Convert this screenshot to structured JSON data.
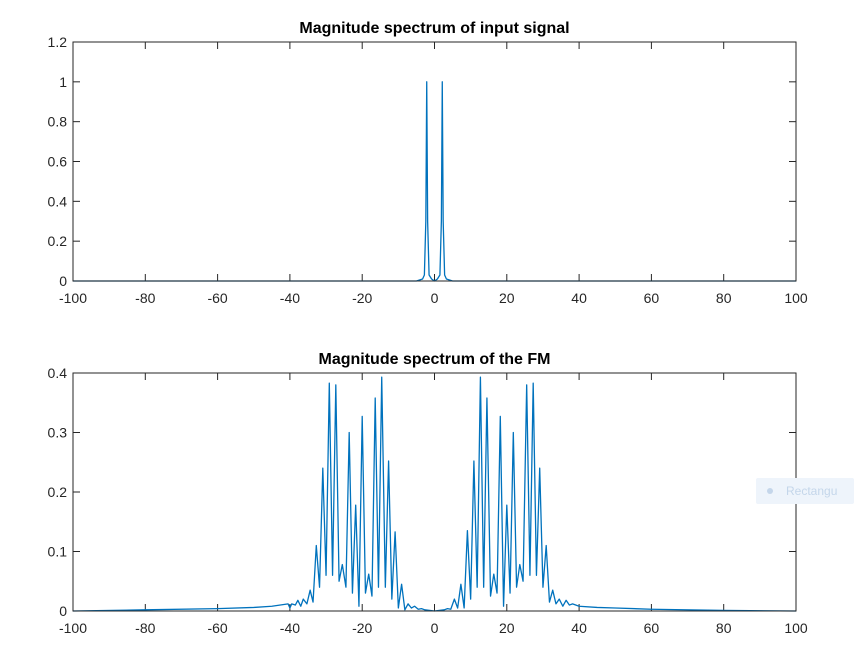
{
  "colors": {
    "line": "#0072BD",
    "axis": "#262626",
    "background": "#ffffff",
    "tag_background": "#eef4fb",
    "tag_text": "#c4d6ea"
  },
  "overlay_tag": {
    "label": "Rectangu",
    "icon": "dot-icon"
  },
  "chart_data": [
    {
      "type": "line",
      "title": "Magnitude spectrum of input signal",
      "xlabel": "",
      "ylabel": "",
      "xlim": [
        -100,
        100
      ],
      "ylim": [
        0,
        1.2
      ],
      "xticks": [
        -100,
        -80,
        -60,
        -40,
        -20,
        0,
        20,
        40,
        60,
        80,
        100
      ],
      "xtick_labels": [
        "-100",
        "-80",
        "-60",
        "-40",
        "-20",
        "0",
        "20",
        "40",
        "60",
        "80",
        "100"
      ],
      "yticks": [
        0,
        0.2,
        0.4,
        0.6,
        0.8,
        1,
        1.2
      ],
      "ytick_labels": [
        "0",
        "0.2",
        "0.4",
        "0.6",
        "0.8",
        "1",
        "1.2"
      ],
      "grid": false,
      "series": [
        {
          "points": [
            [
              -100,
              0.0
            ],
            [
              -20,
              0.0
            ],
            [
              -5,
              0.0
            ],
            [
              -3.3,
              0.01
            ],
            [
              -2.8,
              0.03
            ],
            [
              -2.4,
              0.3
            ],
            [
              -2.15,
              1.0
            ],
            [
              -1.9,
              0.3
            ],
            [
              -1.5,
              0.03
            ],
            [
              -0.8,
              0.01
            ],
            [
              0,
              0.0
            ],
            [
              0.8,
              0.01
            ],
            [
              1.5,
              0.03
            ],
            [
              1.9,
              0.3
            ],
            [
              2.15,
              1.0
            ],
            [
              2.4,
              0.3
            ],
            [
              2.8,
              0.03
            ],
            [
              3.3,
              0.01
            ],
            [
              5,
              0.0
            ],
            [
              20,
              0.0
            ],
            [
              100,
              0.0
            ]
          ]
        }
      ]
    },
    {
      "type": "line",
      "title": "Magnitude spectrum of the FM",
      "xlabel": "",
      "ylabel": "",
      "xlim": [
        -100,
        100
      ],
      "ylim": [
        0,
        0.4
      ],
      "xticks": [
        -100,
        -80,
        -60,
        -40,
        -20,
        0,
        20,
        40,
        60,
        80,
        100
      ],
      "xtick_labels": [
        "-100",
        "-80",
        "-60",
        "-40",
        "-20",
        "0",
        "20",
        "40",
        "60",
        "80",
        "100"
      ],
      "yticks": [
        0,
        0.1,
        0.2,
        0.3,
        0.4
      ],
      "ytick_labels": [
        "0",
        "0.1",
        "0.2",
        "0.3",
        "0.4"
      ],
      "grid": false,
      "series": [
        {
          "points": [
            [
              -100,
              0.0
            ],
            [
              -80,
              0.002
            ],
            [
              -60,
              0.004
            ],
            [
              -50,
              0.006
            ],
            [
              -45,
              0.008
            ],
            [
              -40.5,
              0.012
            ],
            [
              -40,
              0.005
            ],
            [
              -39.5,
              0.012
            ],
            [
              -38.5,
              0.01
            ],
            [
              -37.8,
              0.018
            ],
            [
              -37,
              0.008
            ],
            [
              -36.3,
              0.02
            ],
            [
              -35.3,
              0.012
            ],
            [
              -34.4,
              0.035
            ],
            [
              -33.6,
              0.015
            ],
            [
              -32.7,
              0.11
            ],
            [
              -31.8,
              0.04
            ],
            [
              -30.9,
              0.24
            ],
            [
              -30,
              0.06
            ],
            [
              -29.1,
              0.383
            ],
            [
              -28.2,
              0.06
            ],
            [
              -27.3,
              0.38
            ],
            [
              -26.4,
              0.05
            ],
            [
              -25.5,
              0.078
            ],
            [
              -24.5,
              0.04
            ],
            [
              -23.6,
              0.3
            ],
            [
              -22.7,
              0.03
            ],
            [
              -21.8,
              0.178
            ],
            [
              -20.9,
              0.008
            ],
            [
              -20,
              0.327
            ],
            [
              -19.1,
              0.03
            ],
            [
              -18.2,
              0.062
            ],
            [
              -17.3,
              0.025
            ],
            [
              -16.4,
              0.358
            ],
            [
              -15.5,
              0.04
            ],
            [
              -14.6,
              0.393
            ],
            [
              -13.6,
              0.04
            ],
            [
              -12.7,
              0.252
            ],
            [
              -11.8,
              0.02
            ],
            [
              -10.9,
              0.133
            ],
            [
              -10,
              0.005
            ],
            [
              -9.1,
              0.045
            ],
            [
              -8.2,
              0.002
            ],
            [
              -7.3,
              0.012
            ],
            [
              -6.4,
              0.005
            ],
            [
              -5.5,
              0.008
            ],
            [
              -4.5,
              0.003
            ],
            [
              -3.6,
              0.004
            ],
            [
              -2.7,
              0.002
            ],
            [
              0,
              0.0
            ],
            [
              2.7,
              0.002
            ],
            [
              3.6,
              0.004
            ],
            [
              4.5,
              0.003
            ],
            [
              5.5,
              0.02
            ],
            [
              6.4,
              0.005
            ],
            [
              7.3,
              0.045
            ],
            [
              8.2,
              0.005
            ],
            [
              9.1,
              0.135
            ],
            [
              10,
              0.02
            ],
            [
              10.9,
              0.252
            ],
            [
              11.8,
              0.04
            ],
            [
              12.7,
              0.393
            ],
            [
              13.6,
              0.04
            ],
            [
              14.5,
              0.358
            ],
            [
              15.5,
              0.025
            ],
            [
              16.4,
              0.062
            ],
            [
              17.3,
              0.03
            ],
            [
              18.2,
              0.327
            ],
            [
              19.1,
              0.008
            ],
            [
              20,
              0.178
            ],
            [
              20.9,
              0.03
            ],
            [
              21.8,
              0.3
            ],
            [
              22.7,
              0.04
            ],
            [
              23.6,
              0.078
            ],
            [
              24.5,
              0.05
            ],
            [
              25.5,
              0.38
            ],
            [
              26.4,
              0.06
            ],
            [
              27.3,
              0.383
            ],
            [
              28.2,
              0.06
            ],
            [
              29.1,
              0.24
            ],
            [
              30,
              0.04
            ],
            [
              30.9,
              0.11
            ],
            [
              31.8,
              0.015
            ],
            [
              32.7,
              0.035
            ],
            [
              33.6,
              0.012
            ],
            [
              34.5,
              0.02
            ],
            [
              35.5,
              0.008
            ],
            [
              36.4,
              0.018
            ],
            [
              37.3,
              0.01
            ],
            [
              38.2,
              0.012
            ],
            [
              40,
              0.008
            ],
            [
              45,
              0.006
            ],
            [
              50,
              0.005
            ],
            [
              60,
              0.003
            ],
            [
              80,
              0.001
            ],
            [
              100,
              0.0
            ]
          ]
        }
      ]
    }
  ]
}
